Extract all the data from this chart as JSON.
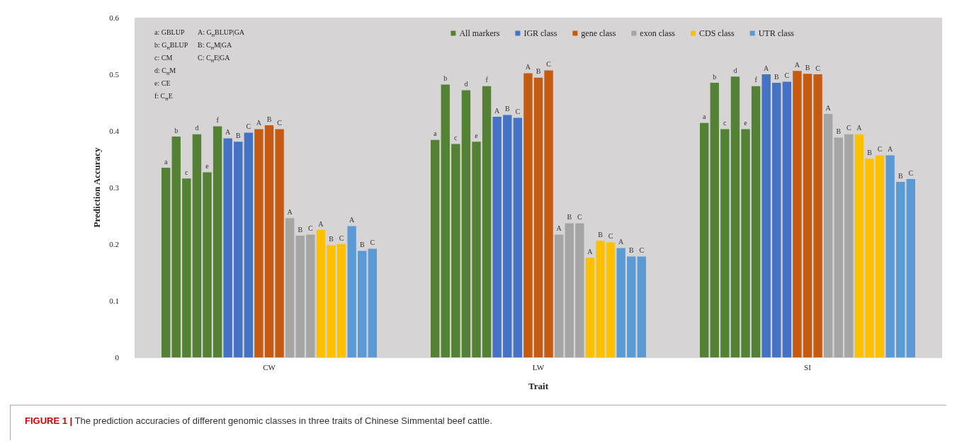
{
  "chart_data": {
    "type": "bar",
    "xlabel": "Trait",
    "ylabel": "Prediction Accuracy",
    "categories": [
      "CW",
      "LW",
      "SI"
    ],
    "ylim": [
      0,
      0.6
    ],
    "yticks": [
      0,
      0.1,
      0.2,
      0.3,
      0.4,
      0.5,
      0.6
    ],
    "grid": false,
    "legend": "top right",
    "annotations": [
      "a: GBLUP",
      "b: G$_{H}$BLUP",
      "c: CM",
      "d: C$_{H}$M",
      "e: CE",
      "f: C$_{H}$E",
      "A: G$_{H}$BLUP|GA",
      "B: C$_{H}$M|GA",
      "C: C$_{H}$E|GA",
      "FIGURE 1 | The prediction accuracies of different genomic classes in three traits of Chinese Simmental beef cattle."
    ],
    "series": [
      {
        "name": "All markers",
        "color": "#548235",
        "values": [
          0.335,
          0.384,
          0.414
        ],
        "value_labels": [
          "a",
          "a",
          "a"
        ]
      },
      {
        "color": "#548235",
        "values": [
          0.39,
          0.482,
          0.485
        ],
        "value_labels": [
          "b",
          "b",
          "b"
        ]
      },
      {
        "color": "#548235",
        "values": [
          0.316,
          0.377,
          0.403
        ],
        "value_labels": [
          "c",
          "c",
          "c"
        ]
      },
      {
        "color": "#548235",
        "values": [
          0.394,
          0.472,
          0.496
        ],
        "value_labels": [
          "d",
          "d",
          "d"
        ]
      },
      {
        "color": "#548235",
        "values": [
          0.327,
          0.381,
          0.403
        ],
        "value_labels": [
          "e",
          "e",
          "e"
        ]
      },
      {
        "color": "#548235",
        "values": [
          0.408,
          0.479,
          0.479
        ],
        "value_labels": [
          "f",
          "f",
          "f"
        ]
      },
      {
        "name": "IGR class",
        "color": "#4472c4",
        "values": [
          0.387,
          0.425,
          0.5
        ],
        "value_labels": [
          "A",
          "A",
          "A"
        ]
      },
      {
        "color": "#4472c4",
        "values": [
          0.381,
          0.428,
          0.485
        ],
        "value_labels": [
          "B",
          "B",
          "B"
        ]
      },
      {
        "color": "#4472c4",
        "values": [
          0.397,
          0.423,
          0.487
        ],
        "value_labels": [
          "C",
          "C",
          "C"
        ]
      },
      {
        "name": "gene class",
        "color": "#c55a11",
        "values": [
          0.403,
          0.502,
          0.506
        ],
        "value_labels": [
          "A",
          "A",
          "A"
        ]
      },
      {
        "color": "#c55a11",
        "values": [
          0.41,
          0.494,
          0.501
        ],
        "value_labels": [
          "B",
          "B",
          "B"
        ]
      },
      {
        "color": "#c55a11",
        "values": [
          0.403,
          0.507,
          0.5
        ],
        "value_labels": [
          "C",
          "C",
          "C"
        ]
      },
      {
        "name": "exon class",
        "color": "#a5a5a5",
        "values": [
          0.246,
          0.217,
          0.43
        ],
        "value_labels": [
          "A",
          "A",
          "A"
        ]
      },
      {
        "color": "#a5a5a5",
        "values": [
          0.215,
          0.237,
          0.388
        ],
        "value_labels": [
          "B",
          "B",
          "B"
        ]
      },
      {
        "color": "#a5a5a5",
        "values": [
          0.217,
          0.237,
          0.394
        ],
        "value_labels": [
          "C",
          "C",
          "C"
        ]
      },
      {
        "name": "CDS class",
        "color": "#ffc000",
        "values": [
          0.225,
          0.176,
          0.394
        ],
        "value_labels": [
          "A",
          "A",
          "A"
        ]
      },
      {
        "color": "#ffc000",
        "values": [
          0.198,
          0.206,
          0.351
        ],
        "value_labels": [
          "B",
          "B",
          "B"
        ]
      },
      {
        "color": "#ffc000",
        "values": [
          0.2,
          0.203,
          0.357
        ],
        "value_labels": [
          "C",
          "C",
          "C"
        ]
      },
      {
        "name": "UTR class",
        "color": "#5b9bd5",
        "values": [
          0.232,
          0.193,
          0.357
        ],
        "value_labels": [
          "A",
          "A",
          "A"
        ]
      },
      {
        "color": "#5b9bd5",
        "values": [
          0.188,
          0.178,
          0.31
        ],
        "value_labels": [
          "B",
          "B",
          "B"
        ]
      },
      {
        "color": "#5b9bd5",
        "values": [
          0.192,
          0.178,
          0.315
        ],
        "value_labels": [
          "C",
          "C",
          "C"
        ]
      }
    ]
  }
}
